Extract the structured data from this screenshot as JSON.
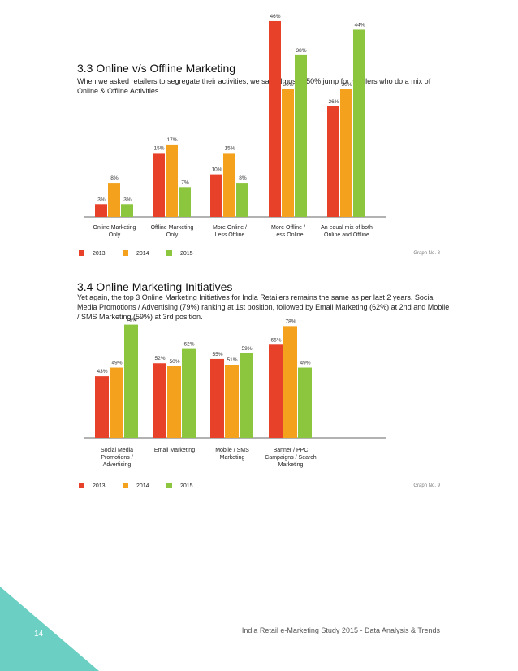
{
  "colors": {
    "y2013": "#e8412a",
    "y2014": "#f4a21e",
    "y2015": "#8cc63f",
    "accent": "#6ccfc4"
  },
  "section1": {
    "title": "3.3 Online v/s Offline Marketing",
    "description": "When we asked retailers to segregate their activities, we saw almost a 50% jump for retailers who do a mix of Online & Offline Activities.",
    "graph_no": "Graph No. 8"
  },
  "section2": {
    "title": "3.4 Online Marketing Initiatives",
    "description": "Yet again, the top 3 Online Marketing Initiatives for India Retailers remains the same as per last 2 years. Social Media Promotions / Advertising (79%) ranking at 1st position, followed by Email Marketing (62%) at 2nd and Mobile / SMS Marketing (59%) at 3rd position.",
    "graph_no": "Graph No. 9"
  },
  "chart_data": [
    {
      "type": "bar",
      "title": "",
      "xlabel": "",
      "ylabel": "",
      "ylim": [
        0,
        50
      ],
      "categories": [
        [
          "Online Marketing",
          "Only"
        ],
        [
          "Offline Marketing",
          "Only"
        ],
        [
          "More Online /",
          "Less Offline"
        ],
        [
          "More Offline /",
          "Less Online"
        ],
        [
          "An equal mix of both",
          "Online and Offline"
        ]
      ],
      "series": [
        {
          "name": "2013",
          "values": [
            3,
            15,
            10,
            46,
            26
          ]
        },
        {
          "name": "2014",
          "values": [
            8,
            17,
            15,
            30,
            30
          ]
        },
        {
          "name": "2015",
          "values": [
            3,
            7,
            8,
            38,
            44
          ]
        }
      ],
      "legend": "bottom-left",
      "grid": false
    },
    {
      "type": "bar",
      "title": "",
      "xlabel": "",
      "ylabel": "",
      "ylim": [
        0,
        85
      ],
      "categories": [
        [
          "Social Media",
          "Promotions /",
          "Advertising"
        ],
        [
          "Email Marketing"
        ],
        [
          "Mobile / SMS",
          "Marketing"
        ],
        [
          "Banner / PPC",
          "Campaigns / Search",
          "Marketing"
        ]
      ],
      "series": [
        {
          "name": "2013",
          "values": [
            43,
            52,
            55,
            65
          ]
        },
        {
          "name": "2014",
          "values": [
            49,
            50,
            51,
            78
          ]
        },
        {
          "name": "2015",
          "values": [
            79,
            62,
            59,
            49
          ]
        }
      ],
      "legend": "bottom-left",
      "grid": false
    }
  ],
  "footer": {
    "page_number": "14",
    "text": "India Retail e-Marketing Study 2015 - Data Analysis & Trends"
  }
}
